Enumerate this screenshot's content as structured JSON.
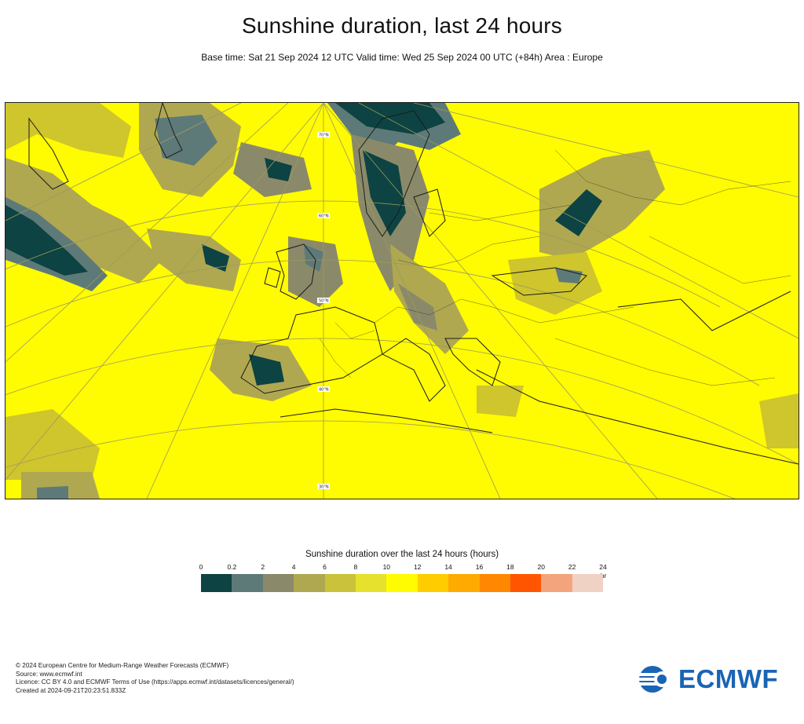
{
  "title": "Sunshine duration, last 24 hours",
  "subtitle": "Base time: Sat 21 Sep 2024 12 UTC Valid time: Wed 25 Sep 2024 00 UTC (+84h) Area : Europe",
  "map": {
    "region": "Europe",
    "latitude_labels": [
      "70°N",
      "60°N",
      "50°N",
      "40°N",
      "30°N"
    ],
    "field_colors": {
      "base": "#fffb00",
      "low": "#0d4342",
      "mid": "#5e7a78",
      "mid2": "#8a8a6a",
      "light": "#afa851",
      "pale": "#cfc52c",
      "near": "#e6e12c"
    }
  },
  "legend": {
    "title": "Sunshine duration over the last 24 hours (hours)",
    "unit": "-hr",
    "ticks": [
      "0",
      "0.2",
      "2",
      "4",
      "6",
      "8",
      "10",
      "12",
      "14",
      "16",
      "18",
      "20",
      "22",
      "24"
    ],
    "colors": [
      "#0d4342",
      "#5e7a78",
      "#8a8a6a",
      "#afa851",
      "#c9c23a",
      "#e6e12c",
      "#fffb00",
      "#ffcc00",
      "#ffaa00",
      "#ff8800",
      "#ff5500",
      "#f4a47c",
      "#f0d2c4"
    ]
  },
  "footer": {
    "line1": "© 2024 European Centre for Medium-Range Weather Forecasts (ECMWF)",
    "line2": "Source: www.ecmwf.int",
    "line3": "Licence: CC BY 4.0 and ECMWF Terms of Use (https://apps.ecmwf.int/datasets/licences/general/)",
    "line4": "Created at 2024-09-21T20:23:51.833Z"
  },
  "logo": {
    "text": "ECMWF",
    "color": "#1a64b4"
  }
}
